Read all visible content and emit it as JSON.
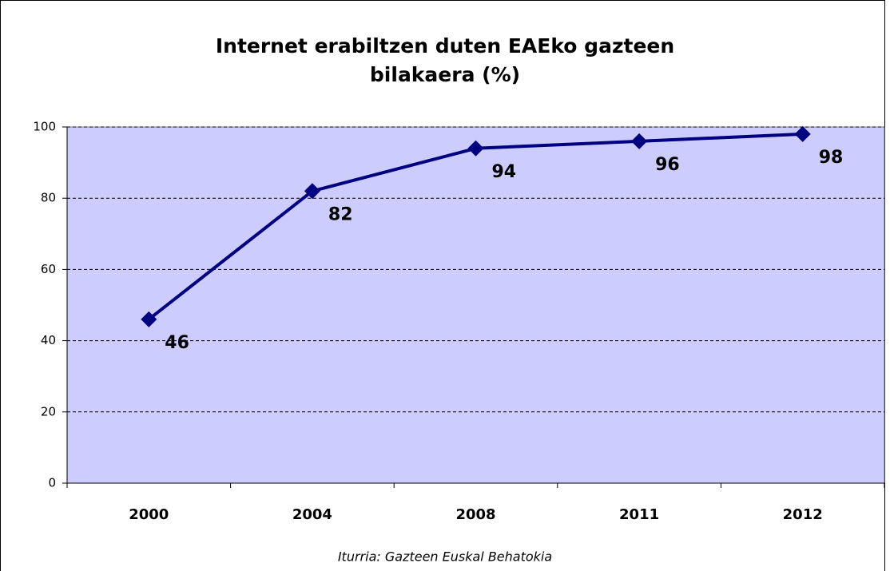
{
  "chart_data": {
    "type": "line",
    "title": "Internet erabiltzen duten EAEko gazteen bilakaera (%)",
    "source": "Iturria: Gazteen Euskal Behatokia",
    "categories": [
      "2000",
      "2004",
      "2008",
      "2011",
      "2012"
    ],
    "values": [
      46,
      82,
      94,
      96,
      98
    ],
    "color": "#000080",
    "background": "#ccccff",
    "ylim": [
      0,
      100
    ],
    "yticks": [
      0,
      20,
      40,
      60,
      80,
      100
    ],
    "grid": true
  }
}
